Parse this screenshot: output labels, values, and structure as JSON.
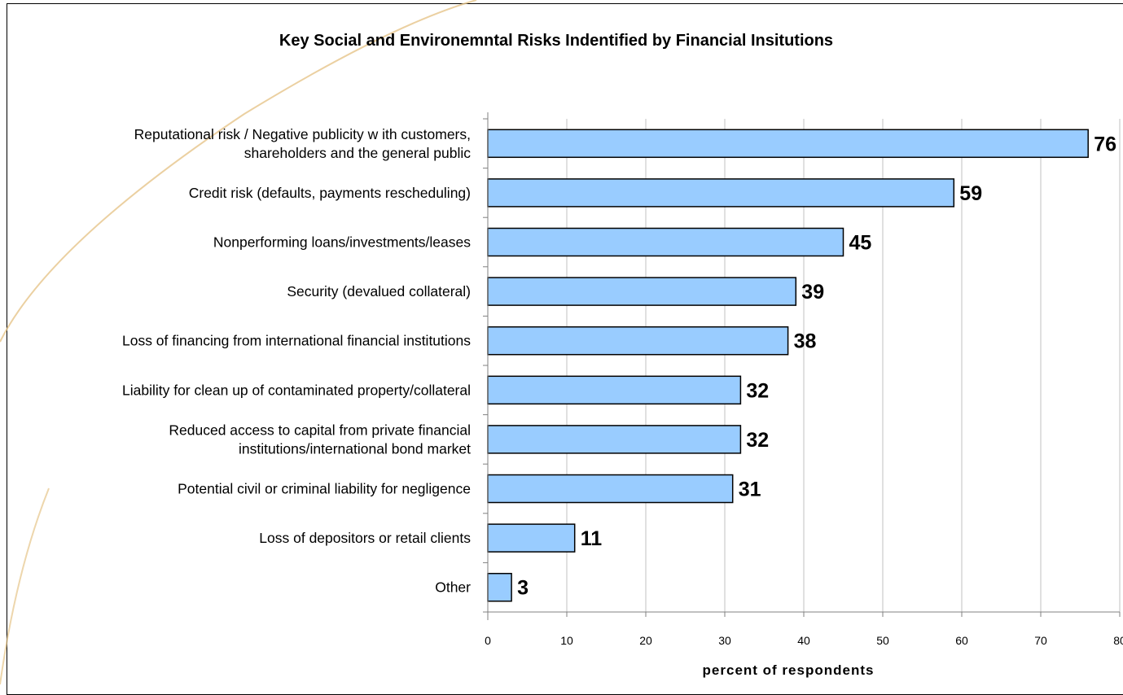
{
  "chart_data": {
    "type": "bar",
    "orientation": "horizontal",
    "title": "Key Social and Environemntal Risks Indentified by Financial Insitutions",
    "xlabel": "percent of respondents",
    "ylabel": "",
    "xlim": [
      0,
      80
    ],
    "xticks": [
      0,
      10,
      20,
      30,
      40,
      50,
      60,
      70,
      80
    ],
    "grid": true,
    "legend": "none",
    "bar_color": "#99ccff",
    "bar_edge_color": "#000000",
    "categories": [
      [
        "Reputational risk / Negative publicity w ith customers,",
        "shareholders and the general public"
      ],
      [
        "Credit risk (defaults,  payments rescheduling)"
      ],
      [
        "Nonperforming loans/investments/leases"
      ],
      [
        "Security (devalued collateral)"
      ],
      [
        "Loss of financing from international financial institutions"
      ],
      [
        "Liability for clean up of contaminated property/collateral"
      ],
      [
        "Reduced access to capital from private financial",
        "institutions/international bond market"
      ],
      [
        "Potential civil or criminal liability for negligence"
      ],
      [
        "Loss of depositors or retail clients"
      ],
      [
        "Other"
      ]
    ],
    "values": [
      76,
      59,
      45,
      39,
      38,
      32,
      32,
      31,
      11,
      3
    ],
    "data_labels": [
      "76",
      "59",
      "45",
      "39",
      "38",
      "32",
      "32",
      "31",
      "11",
      "3"
    ]
  }
}
